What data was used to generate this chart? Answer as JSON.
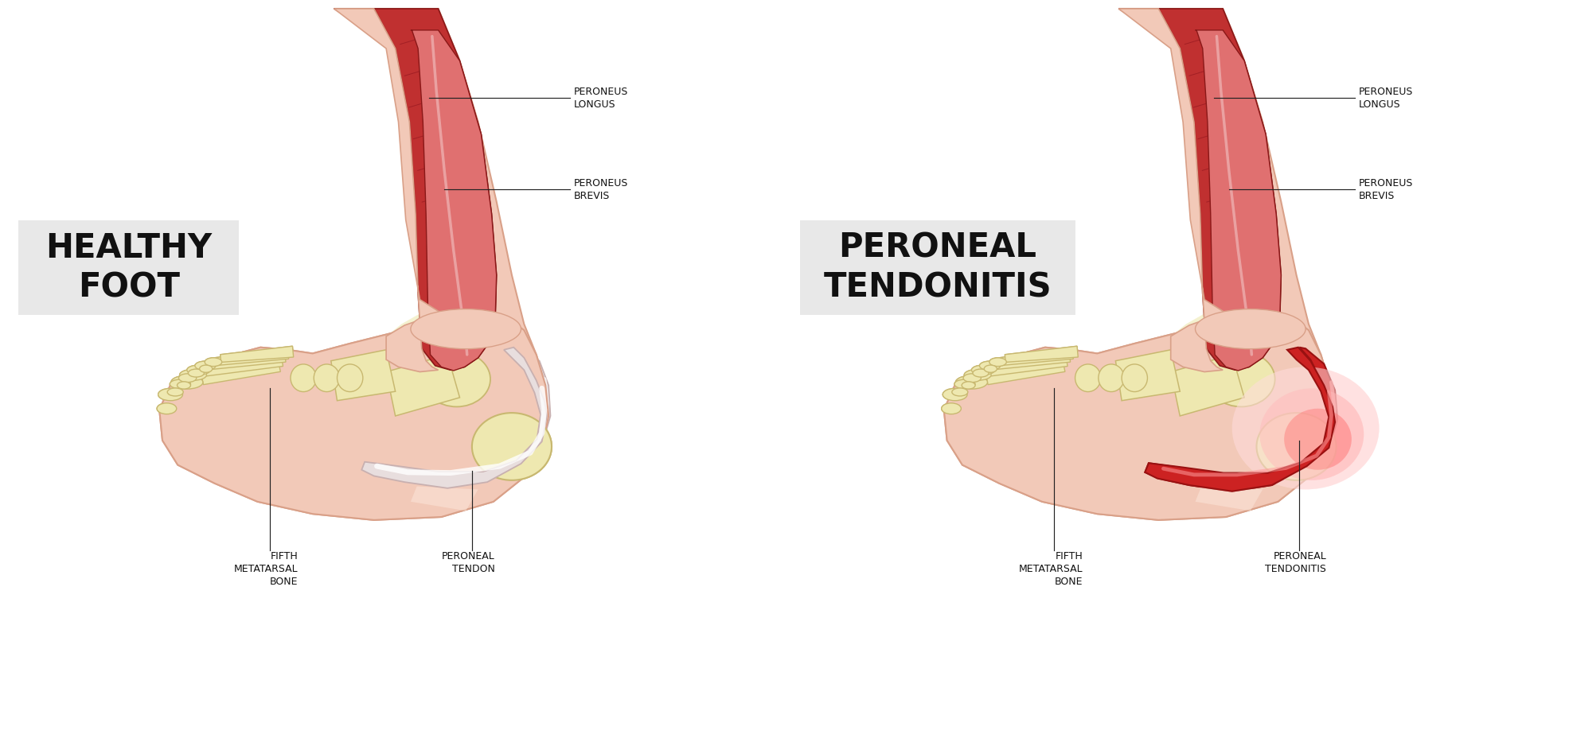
{
  "background_color": "#ffffff",
  "skin_color": "#f2c9b8",
  "skin_mid": "#eab8a2",
  "skin_dark": "#d9a088",
  "bone_color": "#eee8b0",
  "bone_outline": "#c8b870",
  "muscle_red": "#c03030",
  "muscle_red2": "#d04040",
  "muscle_light_red": "#e07070",
  "muscle_dark": "#8a1818",
  "tendon_white": "#e8dede",
  "tendon_outline": "#c8b0b0",
  "inflammation_outer": "#ffdddd",
  "inflammation_mid": "#ffbbbb",
  "inflammation_inner": "#ff7777",
  "label_bg": "#e5e5e5",
  "left_title": "HEALTHY\nFOOT",
  "right_title": "PERONEAL\nTENDONITIS",
  "label_peroneus_longus": "PERONEUS\nLONGUS",
  "label_peroneus_brevis": "PERONEUS\nBREVIS",
  "label_fifth_metatarsal": "FIFTH\nMETATARSAL\nBONE",
  "label_peroneal_tendon": "PERONEAL\nTENDON",
  "label_peroneal_tendonitis": "PERONEAL\nTENDONITIS"
}
